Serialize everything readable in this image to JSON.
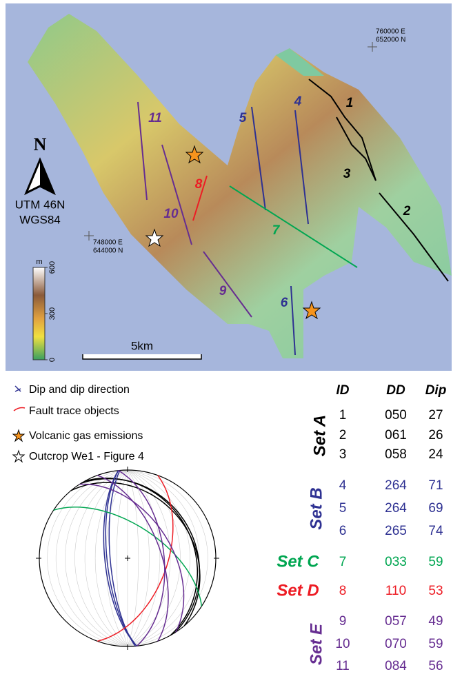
{
  "map": {
    "fault_labels": [
      "1",
      "2",
      "3",
      "4",
      "5",
      "6",
      "7",
      "8",
      "9",
      "10",
      "11"
    ],
    "north": "N",
    "projection": [
      "UTM 46N",
      "WGS84"
    ],
    "coords": [
      [
        "760000 E",
        "652000 N"
      ],
      [
        "748000 E",
        "644000 N"
      ]
    ],
    "scale": "5km",
    "elevation": {
      "unit": "m",
      "ticks": [
        600,
        300,
        0
      ],
      "range": [
        0,
        600
      ]
    }
  },
  "legend": [
    "Dip and dip direction",
    "Fault trace objects",
    "Volcanic gas emissions",
    "Outcrop We1 - Figure 4"
  ],
  "table": {
    "header": [
      "ID",
      "DD",
      "Dip"
    ],
    "sets": [
      {
        "name": "Set A",
        "color": "#000000",
        "rows": [
          [
            "1",
            "050",
            "27"
          ],
          [
            "2",
            "061",
            "26"
          ],
          [
            "3",
            "058",
            "24"
          ]
        ]
      },
      {
        "name": "Set B",
        "color": "#2e3192",
        "rows": [
          [
            "4",
            "264",
            "71"
          ],
          [
            "5",
            "264",
            "69"
          ],
          [
            "6",
            "265",
            "74"
          ]
        ]
      },
      {
        "name": "Set C",
        "color": "#00a651",
        "rows": [
          [
            "7",
            "033",
            "59"
          ]
        ]
      },
      {
        "name": "Set D",
        "color": "#ed1c24",
        "rows": [
          [
            "8",
            "110",
            "53"
          ]
        ]
      },
      {
        "name": "Set E",
        "color": "#662d91",
        "rows": [
          [
            "9",
            "057",
            "49"
          ],
          [
            "10",
            "070",
            "59"
          ],
          [
            "11",
            "084",
            "56"
          ]
        ]
      }
    ]
  }
}
